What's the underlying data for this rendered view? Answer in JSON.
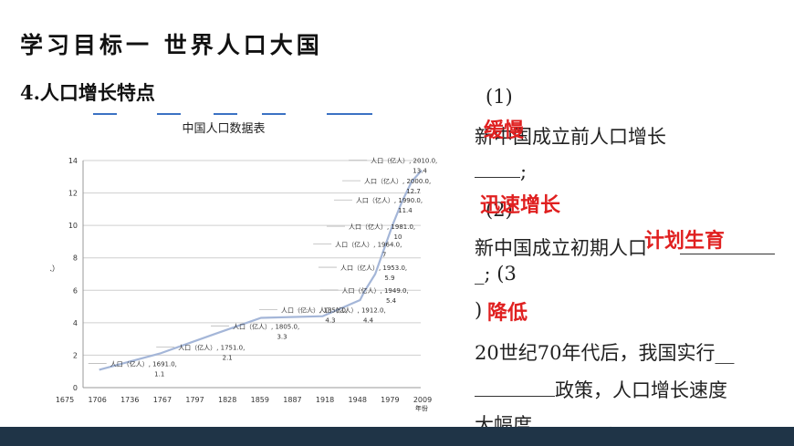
{
  "header": {
    "title": "学习目标一   世界人口大国",
    "subtitle": "4.人口增长特点"
  },
  "chart_data": {
    "type": "line",
    "title": "中国人口数据表",
    "ylabel": "人口（亿人）",
    "xlabel": "年份",
    "ylim": [
      0,
      14
    ],
    "yticks": [
      0,
      2,
      4,
      6,
      8,
      10,
      12,
      14
    ],
    "xticks": [
      "1675",
      "1706",
      "1736",
      "1767",
      "1797",
      "1828",
      "1859",
      "1887",
      "1918",
      "1948",
      "1979",
      "2009"
    ],
    "grid": true,
    "series": [
      {
        "name": "人口（亿人）",
        "points": [
          {
            "x": 1691,
            "y": 1.1,
            "label1": "人口（亿人）, 1691.0,",
            "label2": "1.1"
          },
          {
            "x": 1751,
            "y": 2.1,
            "label1": "人口（亿人）, 1751.0,",
            "label2": "2.1"
          },
          {
            "x": 1805,
            "y": 3.3,
            "label1": "人口（亿人）, 1805.0,",
            "label2": "3.3"
          },
          {
            "x": 1851,
            "y": 4.3,
            "label1": "人口（亿人）, 1851.0,",
            "label2": "4.3"
          },
          {
            "x": 1912,
            "y": 4.4,
            "label1": "人口（亿人）, 1912.0,",
            "label2": "4.4"
          },
          {
            "x": 1949,
            "y": 5.4,
            "label1": "人口（亿人）, 1949.0,",
            "label2": "5.4"
          },
          {
            "x": 1953,
            "y": 5.9,
            "label1": "人口（亿人）, 1953.0,",
            "label2": "5.9"
          },
          {
            "x": 1964,
            "y": 7,
            "label1": "人口（亿人）, 1964.0,",
            "label2": "7"
          },
          {
            "x": 1981,
            "y": 10,
            "label1": "人口（亿人）, 1981.0,",
            "label2": "10"
          },
          {
            "x": 1990,
            "y": 11.4,
            "label1": "人口（亿人）, 1990.0,",
            "label2": "11.4"
          },
          {
            "x": 2000,
            "y": 12.7,
            "label1": "人口（亿人）, 2000.0,",
            "label2": "12.7"
          },
          {
            "x": 2010,
            "y": 13.4,
            "label1": "人口（亿人）, 2010.0,",
            "label2": "13.4"
          }
        ]
      }
    ]
  },
  "questions": {
    "q1_num": "(1)",
    "q1_text": "新中国成立前人口增长",
    "q1_end": ";",
    "q2_num": "(2)",
    "q2_text": "新中国成立初期人口",
    "q2_end": "_; (3",
    "q3_num": ")",
    "q3_text1": "20世纪70年代后，我国实行__",
    "q3_text2": "政策，人口增长速度",
    "q3_text3": "大幅度",
    "q3_end": "。"
  },
  "answers": {
    "a1": "缓慢",
    "a2": "迅速增长",
    "a3": "计划生育",
    "a4": "降低"
  },
  "colors": {
    "line": "#a4b6d8",
    "answer": "#e02020",
    "bottom_bar": "#1f3447"
  }
}
